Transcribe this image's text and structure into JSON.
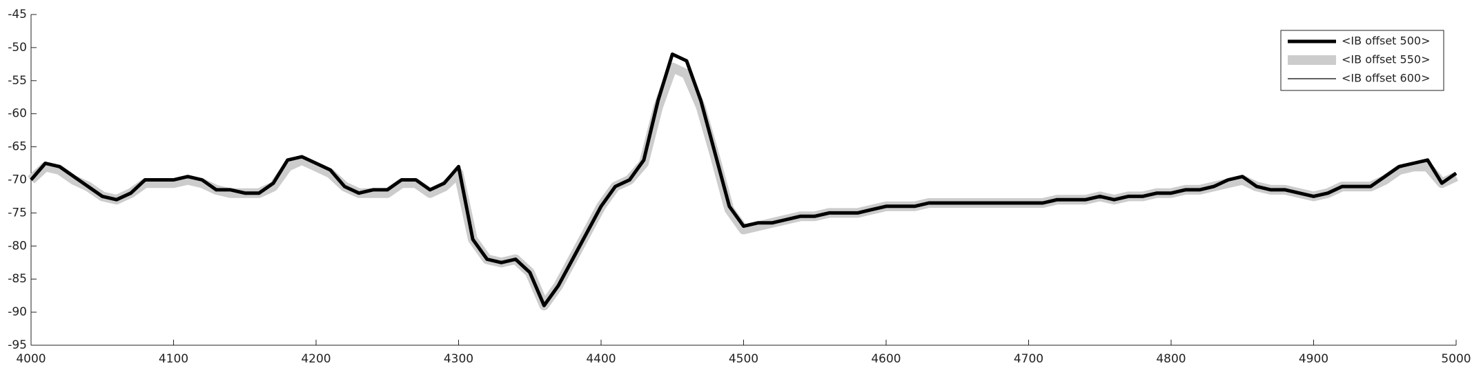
{
  "chart_data": {
    "type": "line",
    "x": [
      4000,
      4010,
      4020,
      4030,
      4040,
      4050,
      4060,
      4070,
      4080,
      4090,
      4100,
      4110,
      4120,
      4130,
      4140,
      4150,
      4160,
      4170,
      4180,
      4190,
      4200,
      4210,
      4220,
      4230,
      4240,
      4250,
      4260,
      4270,
      4280,
      4290,
      4300,
      4310,
      4320,
      4330,
      4340,
      4350,
      4360,
      4370,
      4380,
      4390,
      4400,
      4410,
      4420,
      4430,
      4440,
      4450,
      4460,
      4470,
      4480,
      4490,
      4500,
      4510,
      4520,
      4530,
      4540,
      4550,
      4560,
      4570,
      4580,
      4590,
      4600,
      4610,
      4620,
      4630,
      4640,
      4650,
      4660,
      4670,
      4680,
      4690,
      4700,
      4710,
      4720,
      4730,
      4740,
      4750,
      4760,
      4770,
      4780,
      4790,
      4800,
      4810,
      4820,
      4830,
      4840,
      4850,
      4860,
      4870,
      4880,
      4890,
      4900,
      4910,
      4920,
      4930,
      4940,
      4950,
      4960,
      4970,
      4980,
      4990,
      5000
    ],
    "series": [
      {
        "name": "<IB offset 500>",
        "color": "#000000",
        "values": [
          -70,
          -67.5,
          -68,
          -69.5,
          -71,
          -72.5,
          -73,
          -72,
          -70,
          -70,
          -70,
          -69.5,
          -70,
          -71.5,
          -71.5,
          -72,
          -72,
          -70.5,
          -67,
          -66.5,
          -67.5,
          -68.5,
          -71,
          -72,
          -71.5,
          -71.5,
          -70,
          -70,
          -71.5,
          -70.5,
          -68,
          -79,
          -82,
          -82.5,
          -82,
          -84,
          -89,
          -86,
          -82,
          -78,
          -74,
          -71,
          -70,
          -67,
          -58,
          -51,
          -52,
          -58,
          -66,
          -74,
          -77,
          -76.5,
          -76.5,
          -76,
          -75.5,
          -75.5,
          -75,
          -75,
          -75,
          -74.5,
          -74,
          -74,
          -74,
          -73.5,
          -73.5,
          -73.5,
          -73.5,
          -73.5,
          -73.5,
          -73.5,
          -73.5,
          -73.5,
          -73,
          -73,
          -73,
          -72.5,
          -73,
          -72.5,
          -72.5,
          -72,
          -72,
          -71.5,
          -71.5,
          -71,
          -70,
          -69.5,
          -71,
          -71.5,
          -71.5,
          -72,
          -72.5,
          -72,
          -71,
          -71,
          -71,
          -69.5,
          -68,
          -67.5,
          -67,
          -70.5,
          -69
        ]
      },
      {
        "name": "<IB offset 550>",
        "color": "#cccccc",
        "values": [
          -70,
          -68,
          -68.5,
          -70,
          -71,
          -72.5,
          -73,
          -72,
          -70.5,
          -70.5,
          -70.5,
          -70,
          -70.5,
          -71.5,
          -72,
          -72,
          -72,
          -71,
          -68,
          -67,
          -68,
          -69,
          -71,
          -72,
          -72,
          -72,
          -70.5,
          -70.5,
          -72,
          -71,
          -69,
          -79,
          -82,
          -82.5,
          -82,
          -84,
          -89,
          -86,
          -82,
          -78,
          -74,
          -71,
          -70,
          -67.5,
          -59,
          -53,
          -54,
          -59,
          -66.5,
          -74.5,
          -77.5,
          -77,
          -76.5,
          -76,
          -75.5,
          -75.5,
          -75,
          -75,
          -75,
          -74.5,
          -74,
          -74,
          -74,
          -73.5,
          -73.5,
          -73.5,
          -73.5,
          -73.5,
          -73.5,
          -73.5,
          -73.5,
          -73.5,
          -73,
          -73,
          -73,
          -72.5,
          -73,
          -72.5,
          -72.5,
          -72,
          -72,
          -71.5,
          -71.5,
          -71,
          -70.5,
          -70,
          -71,
          -71.5,
          -71.5,
          -72,
          -72.5,
          -72,
          -71,
          -71,
          -71,
          -70,
          -68.5,
          -68,
          -68,
          -70.5,
          -69.5
        ]
      },
      {
        "name": "<IB offset 600>",
        "color": "#000000",
        "values": [
          -70,
          -67.5,
          -68,
          -69.5,
          -71,
          -72.5,
          -73,
          -72,
          -70,
          -70,
          -70,
          -69.5,
          -70,
          -71.5,
          -71.5,
          -72,
          -72,
          -70.5,
          -67,
          -66.5,
          -67.5,
          -68.5,
          -71,
          -72,
          -71.5,
          -71.5,
          -70,
          -70,
          -71.5,
          -70.5,
          -68,
          -79,
          -82,
          -82.5,
          -82,
          -84,
          -89,
          -86,
          -82,
          -78,
          -74,
          -71,
          -70,
          -67,
          -58,
          -51,
          -52,
          -58,
          -66,
          -74,
          -77,
          -76.5,
          -76.5,
          -76,
          -75.5,
          -75.5,
          -75,
          -75,
          -75,
          -74.5,
          -74,
          -74,
          -74,
          -73.5,
          -73.5,
          -73.5,
          -73.5,
          -73.5,
          -73.5,
          -73.5,
          -73.5,
          -73.5,
          -73,
          -73,
          -73,
          -72.5,
          -73,
          -72.5,
          -72.5,
          -72,
          -72,
          -71.5,
          -71.5,
          -71,
          -70,
          -69.5,
          -71,
          -71.5,
          -71.5,
          -72,
          -72.5,
          -72,
          -71,
          -71,
          -71,
          -69.5,
          -68,
          -67.5,
          -67,
          -70.5,
          -69
        ]
      }
    ],
    "xlim": [
      4000,
      5000
    ],
    "xticks": [
      4000,
      4100,
      4200,
      4300,
      4400,
      4500,
      4600,
      4700,
      4800,
      4900,
      5000
    ],
    "ylim": [
      -95,
      -45
    ],
    "yticks": [
      -95,
      -90,
      -85,
      -80,
      -75,
      -70,
      -65,
      -60,
      -55,
      -50,
      -45
    ],
    "legend": "upper right"
  }
}
